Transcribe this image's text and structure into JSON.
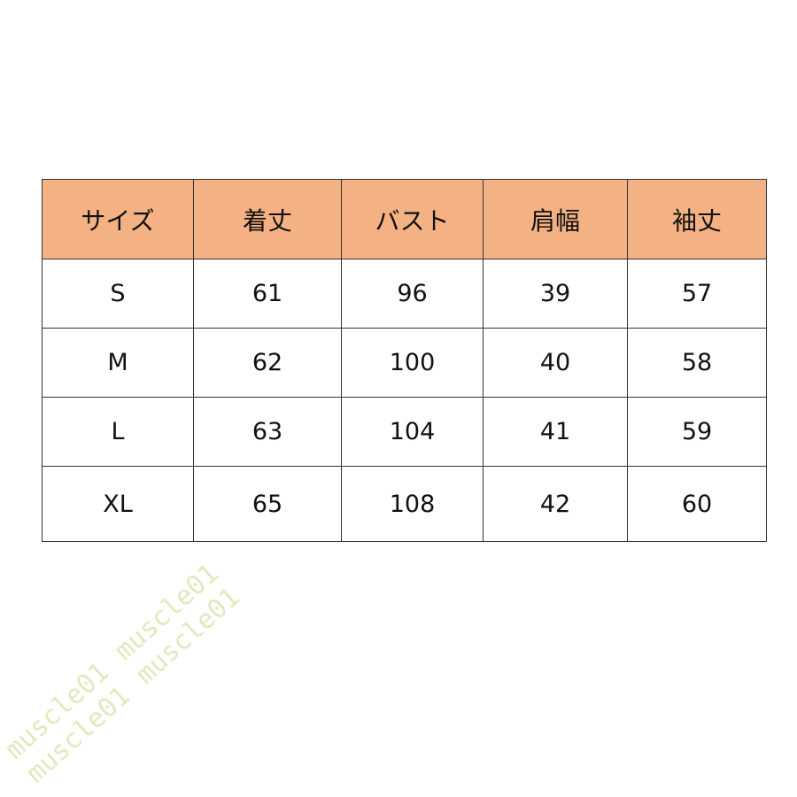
{
  "table": {
    "headers": [
      "サイズ",
      "着丈",
      "バスト",
      "肩幅",
      "袖丈"
    ],
    "header_color": "#F4B183",
    "rows": [
      [
        "S",
        "61",
        "96",
        "39",
        "57"
      ],
      [
        "M",
        "62",
        "100",
        "40",
        "58"
      ],
      [
        "L",
        "63",
        "104",
        "41",
        "59"
      ],
      [
        "XL",
        "65",
        "108",
        "42",
        "60"
      ]
    ]
  },
  "watermark": "muscle01 muscle01 muscle01 muscle01"
}
